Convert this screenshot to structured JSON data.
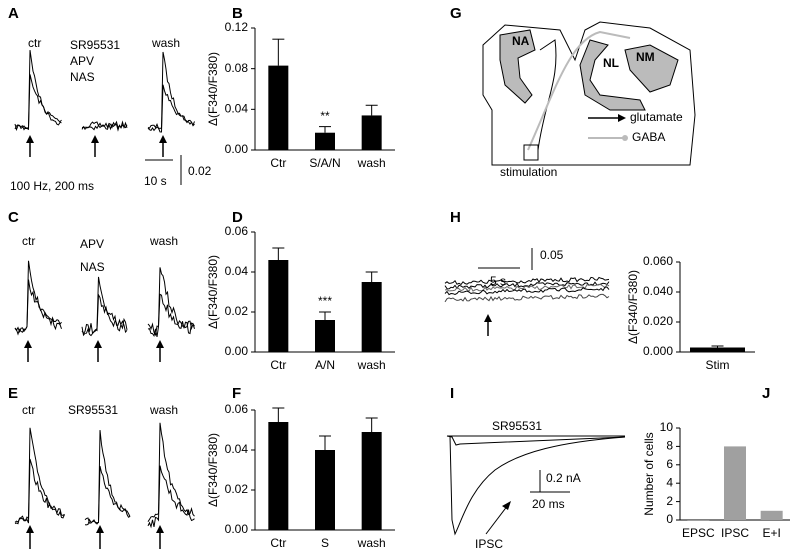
{
  "panels": {
    "A": {
      "letter": "A",
      "ctr": "ctr",
      "drugs": [
        "SR95531",
        "APV",
        "NAS"
      ],
      "wash": "wash",
      "time_scale": "10 s",
      "amp_scale": "0.02",
      "stim": "100 Hz, 200 ms"
    },
    "C": {
      "letter": "C",
      "ctr": "ctr",
      "drugs": [
        "APV",
        "NAS"
      ],
      "wash": "wash"
    },
    "E": {
      "letter": "E",
      "ctr": "ctr",
      "drugs": [
        "SR95531"
      ],
      "wash": "wash"
    },
    "G": {
      "letter": "G",
      "nuclei": [
        "NA",
        "NL",
        "NM"
      ],
      "legend": [
        "glutamate",
        "GABA"
      ],
      "stimulation": "stimulation"
    },
    "H": {
      "letter": "H",
      "time_scale": "5 s",
      "amp_scale": "0.05"
    },
    "I": {
      "letter": "I",
      "drug": "SR95531",
      "amp_scale": "0.2 nA",
      "time_scale": "20 ms",
      "trace": "IPSC"
    }
  },
  "chart_data": [
    {
      "type": "bar",
      "panel": "B",
      "ylabel": "Δ(F340/F380)",
      "categories": [
        "Ctr",
        "S/A/N",
        "wash"
      ],
      "values": [
        0.083,
        0.017,
        0.034
      ],
      "errors": [
        0.026,
        0.006,
        0.01
      ],
      "bar_annotations": [
        null,
        "**",
        null
      ],
      "color": "#000000",
      "ylim": [
        0,
        0.12
      ],
      "yticks": [
        {
          "value": 0,
          "label": "0.00"
        },
        {
          "value": 0.04,
          "label": "0.04"
        },
        {
          "value": 0.08,
          "label": "0.08"
        },
        {
          "value": 0.12,
          "label": "0.12"
        }
      ]
    },
    {
      "type": "bar",
      "panel": "D",
      "ylabel": "Δ(F340/F380)",
      "categories": [
        "Ctr",
        "A/N",
        "wash"
      ],
      "values": [
        0.046,
        0.016,
        0.035
      ],
      "errors": [
        0.006,
        0.004,
        0.005
      ],
      "bar_annotations": [
        null,
        "***",
        null
      ],
      "color": "#000000",
      "ylim": [
        0,
        0.06
      ],
      "yticks": [
        {
          "value": 0,
          "label": "0.00"
        },
        {
          "value": 0.02,
          "label": "0.02"
        },
        {
          "value": 0.04,
          "label": "0.04"
        },
        {
          "value": 0.06,
          "label": "0.06"
        }
      ]
    },
    {
      "type": "bar",
      "panel": "F",
      "ylabel": "Δ(F340/F380)",
      "categories": [
        "Ctr",
        "S",
        "wash"
      ],
      "values": [
        0.054,
        0.04,
        0.049
      ],
      "errors": [
        0.007,
        0.007,
        0.007
      ],
      "color": "#000000",
      "ylim": [
        0,
        0.06
      ],
      "yticks": [
        {
          "value": 0,
          "label": "0.00"
        },
        {
          "value": 0.02,
          "label": "0.02"
        },
        {
          "value": 0.04,
          "label": "0.04"
        },
        {
          "value": 0.06,
          "label": "0.06"
        }
      ]
    },
    {
      "type": "bar",
      "ylabel": "Δ(F340/F380)",
      "categories": [
        "Stim"
      ],
      "values": [
        0.003
      ],
      "errors": [
        0.001
      ],
      "color": "#000000",
      "ylim": [
        0,
        0.06
      ],
      "yticks": [
        {
          "value": 0,
          "label": "0.000"
        },
        {
          "value": 0.02,
          "label": "0.020"
        },
        {
          "value": 0.04,
          "label": "0.040"
        },
        {
          "value": 0.06,
          "label": "0.060"
        }
      ]
    },
    {
      "type": "bar",
      "panel": "J",
      "ylabel": "Number of cells",
      "categories": [
        "EPSC",
        "IPSC",
        "E+I"
      ],
      "values": [
        0,
        8,
        1
      ],
      "color": "#a0a0a0",
      "ylim": [
        0,
        10
      ],
      "yticks": [
        0,
        2,
        4,
        6,
        8,
        10
      ]
    }
  ]
}
